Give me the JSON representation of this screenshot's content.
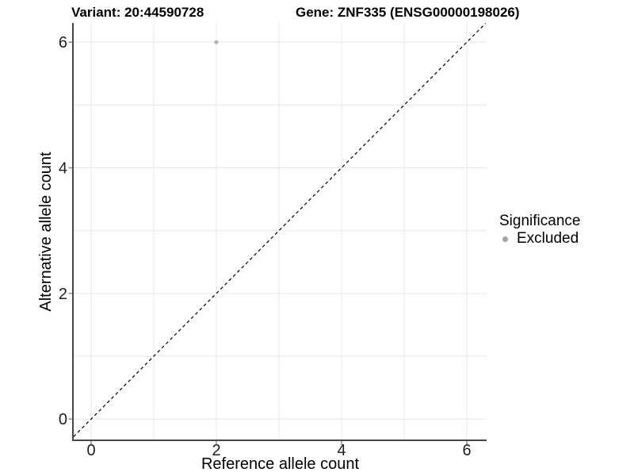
{
  "header": {
    "variant_title": "Variant: 20:44590728",
    "gene_title": "Gene: ZNF335 (ENSG00000198026)"
  },
  "legend": {
    "title": "Significance",
    "items": [
      {
        "label": "Excluded",
        "color": "#a3a3a3"
      }
    ]
  },
  "chart_data": {
    "type": "scatter",
    "title": "Variant: 20:44590728 | Gene: ZNF335 (ENSG00000198026)",
    "xlabel": "Reference allele count",
    "ylabel": "Alternative allele count",
    "xlim": [
      -0.28,
      6.32
    ],
    "ylim": [
      -0.34,
      6.3
    ],
    "xticks": [
      0,
      2,
      4,
      6
    ],
    "yticks": [
      0,
      2,
      4,
      6
    ],
    "minor_ticks": [
      1,
      3,
      5
    ],
    "grid": "major+minor",
    "legend_position": "right",
    "identity_line": {
      "type": "y=x",
      "style": "dashed",
      "color": "#000000",
      "dash": "4 3.5"
    },
    "series": [
      {
        "name": "Excluded",
        "color": "#b3b3b3",
        "points": [
          {
            "x": 2,
            "y": 6
          }
        ]
      }
    ],
    "colors": {
      "grid": "#e7e7e7",
      "axis": "#474747",
      "tick": "#8c8c8c",
      "tick_label": "#1f1f1f",
      "background": "#ffffff"
    }
  }
}
